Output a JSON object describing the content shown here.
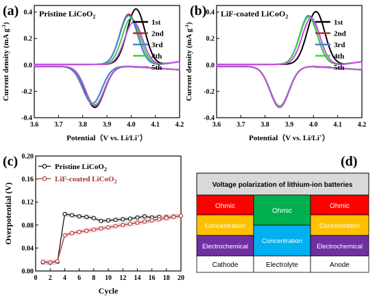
{
  "panels": {
    "a": {
      "label": "(a)",
      "title_main": "Pristine LiCoO",
      "title_sub": "2"
    },
    "b": {
      "label": "(b)",
      "title_main": "LiF-coated LiCoO",
      "title_sub": "2"
    },
    "c": {
      "label": "(c)"
    },
    "d": {
      "label": "(d)"
    }
  },
  "chart_data": [
    {
      "id": "a",
      "type": "line",
      "xlabel_main": "Potential（V vs. Li/Li",
      "xlabel_sup": "+",
      "xlabel_end": "）",
      "ylabel_main": "Current density (mA g",
      "ylabel_sup": "-1",
      "ylabel_end": ")",
      "xlim": [
        3.6,
        4.2
      ],
      "ylim": [
        -0.4,
        0.45
      ],
      "xticks": [
        "3.6",
        "3.7",
        "3.8",
        "3.9",
        "4.0",
        "4.1",
        "4.2"
      ],
      "yticks": [
        "-0.4",
        "-0.2",
        "0.0",
        "0.2",
        "0.4"
      ],
      "legend": [
        "1st",
        "2nd",
        "3rd",
        "4th",
        "5th"
      ],
      "series": [
        {
          "name": "1st",
          "color": "#000000",
          "ox": 4.02,
          "oy": 0.42,
          "rx": 3.85,
          "ry": -0.31
        },
        {
          "name": "2nd",
          "color": "#a83232",
          "ox": 3.99,
          "oy": 0.38,
          "rx": 3.84,
          "ry": -0.28
        },
        {
          "name": "3rd",
          "color": "#3e86d6",
          "ox": 3.99,
          "oy": 0.37,
          "rx": 3.84,
          "ry": -0.28
        },
        {
          "name": "4th",
          "color": "#3fcf3f",
          "ox": 4.0,
          "oy": 0.35,
          "rx": 3.85,
          "ry": -0.29
        },
        {
          "name": "5th",
          "color": "#c14fe0",
          "ox": 4.01,
          "oy": 0.32,
          "rx": 3.85,
          "ry": -0.3
        }
      ]
    },
    {
      "id": "b",
      "type": "line",
      "xlabel_main": "Potential（V vs. Li/Li",
      "xlabel_sup": "+",
      "xlabel_end": "）",
      "ylabel_main": "Current density (mA g",
      "ylabel_sup": "-1",
      "ylabel_end": ")",
      "xlim": [
        3.6,
        4.2
      ],
      "ylim": [
        -0.4,
        0.45
      ],
      "xticks": [
        "3.6",
        "3.7",
        "3.8",
        "3.9",
        "4.0",
        "4.1",
        "4.2"
      ],
      "yticks": [
        "-0.4",
        "-0.2",
        "0.0",
        "0.2",
        "0.4"
      ],
      "legend": [
        "1st",
        "2nd",
        "3rd",
        "4th",
        "5th"
      ],
      "series": [
        {
          "name": "1st",
          "color": "#000000",
          "ox": 4.01,
          "oy": 0.4,
          "rx": 3.86,
          "ry": -0.3
        },
        {
          "name": "2nd",
          "color": "#a83232",
          "ox": 3.98,
          "oy": 0.36,
          "rx": 3.86,
          "ry": -0.31
        },
        {
          "name": "3rd",
          "color": "#3e86d6",
          "ox": 3.98,
          "oy": 0.37,
          "rx": 3.86,
          "ry": -0.3
        },
        {
          "name": "4th",
          "color": "#3fcf3f",
          "ox": 3.98,
          "oy": 0.36,
          "rx": 3.86,
          "ry": -0.3
        },
        {
          "name": "5th",
          "color": "#c14fe0",
          "ox": 3.99,
          "oy": 0.35,
          "rx": 3.86,
          "ry": -0.31
        }
      ]
    },
    {
      "id": "c",
      "type": "line",
      "xlabel": "Cycle",
      "ylabel": "Overpotential (V)",
      "xlim": [
        0,
        20
      ],
      "ylim": [
        0,
        0.2
      ],
      "xticks": [
        "0",
        "2",
        "4",
        "6",
        "8",
        "10",
        "12",
        "14",
        "16",
        "18",
        "20"
      ],
      "yticks": [
        "0.00",
        "0.04",
        "0.08",
        "0.12",
        "0.16",
        "0.20"
      ],
      "x": [
        1,
        2,
        3,
        4,
        5,
        6,
        7,
        8,
        9,
        10,
        11,
        12,
        13,
        14,
        15,
        16,
        17,
        18,
        19,
        20
      ],
      "series": [
        {
          "name_main": "Pristine LiCoO",
          "name_sub": "2",
          "color": "#000000",
          "band": "#d9d9d9",
          "values": [
            0.015,
            0.014,
            0.016,
            0.099,
            0.097,
            0.095,
            0.094,
            0.092,
            0.087,
            0.088,
            0.089,
            0.09,
            0.091,
            0.093,
            0.095,
            0.093,
            0.094,
            0.094,
            0.095,
            0.096
          ]
        },
        {
          "name_main": "LiF-coated LiCoO",
          "name_sub": "2",
          "color": "#a83232",
          "band": "#f4c6c6",
          "values": [
            0.016,
            0.015,
            0.017,
            0.062,
            0.066,
            0.068,
            0.07,
            0.072,
            0.074,
            0.076,
            0.078,
            0.08,
            0.082,
            0.084,
            0.086,
            0.088,
            0.09,
            0.092,
            0.094,
            0.096
          ]
        }
      ]
    }
  ],
  "diagram": {
    "header": "Voltage polarization of lithium-ion batteries",
    "cathode_blocks": [
      "Ohmic",
      "Concentration",
      "Electrochemical"
    ],
    "electrolyte_blocks": [
      "Ohmic",
      "Concentration"
    ],
    "anode_blocks": [
      "Ohmic",
      "Concentration",
      "Electrochemical"
    ],
    "columns": [
      "Cathode",
      "Electrolyte",
      "Anode"
    ],
    "colors": {
      "ohmic": "#ff0000",
      "concentration": "#ffc000",
      "electrochemical": "#7030a0",
      "ohmic_electrolyte": "#00b050",
      "concentration_electrolyte": "#00b0f0",
      "header_bg": "#d9d9d9"
    }
  }
}
